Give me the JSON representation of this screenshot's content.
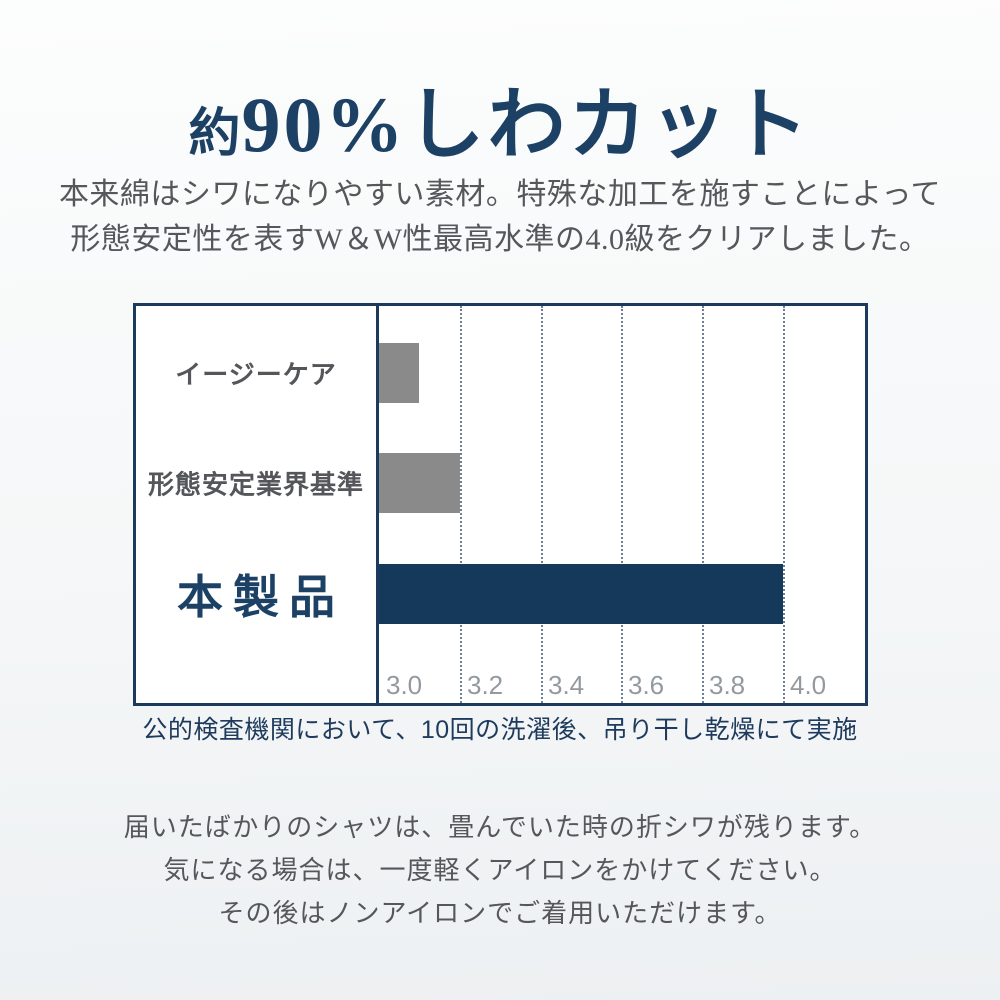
{
  "page": {
    "title_prefix": "約",
    "title_main": "90%しわカット",
    "intro_lines": [
      "本来綿はシワになりやすい素材。特殊な加工を施すことによって",
      "形態安定性を表すW＆W性最高水準の4.0級をクリアしました。"
    ],
    "chart_caption": "公的検査機関において、10回の洗濯後、吊り干し乾燥にて実施",
    "note_lines": [
      "届いたばかりのシャツは、畳んでいた時の折シワが残ります。",
      "気になる場合は、一度軽くアイロンをかけてください。",
      "その後はノンアイロンでご着用いただけます。"
    ]
  },
  "colors": {
    "navy": "#1d4164",
    "caption_navy": "#1e3b5d",
    "border_navy": "#1b3a5c",
    "bar_gray": "#8a8a8a",
    "bar_navy": "#14395b",
    "text_gray": "#55575b",
    "tick_gray": "#94999e",
    "grid": "#6b8096"
  },
  "chart_data": {
    "type": "bar",
    "orientation": "horizontal",
    "title": "",
    "xlabel": "",
    "ylabel": "",
    "x_axis": {
      "min": 3.0,
      "max_visible": 4.2,
      "ticks": [
        3.0,
        3.2,
        3.4,
        3.6,
        3.8,
        4.0
      ],
      "tick_labels": [
        "3.0",
        "3.2",
        "3.4",
        "3.6",
        "3.8",
        "4.0"
      ]
    },
    "grid": true,
    "series": [
      {
        "category": "イージーケア",
        "value": 3.1,
        "color": "#8a8a8a",
        "emphasis": false
      },
      {
        "category": "形態安定業界基準",
        "value": 3.2,
        "color": "#8a8a8a",
        "emphasis": false
      },
      {
        "category": "本製品",
        "value": 4.0,
        "color": "#14395b",
        "emphasis": true
      }
    ],
    "caption": "公的検査機関において、10回の洗濯後、吊り干し乾燥にて実施"
  }
}
